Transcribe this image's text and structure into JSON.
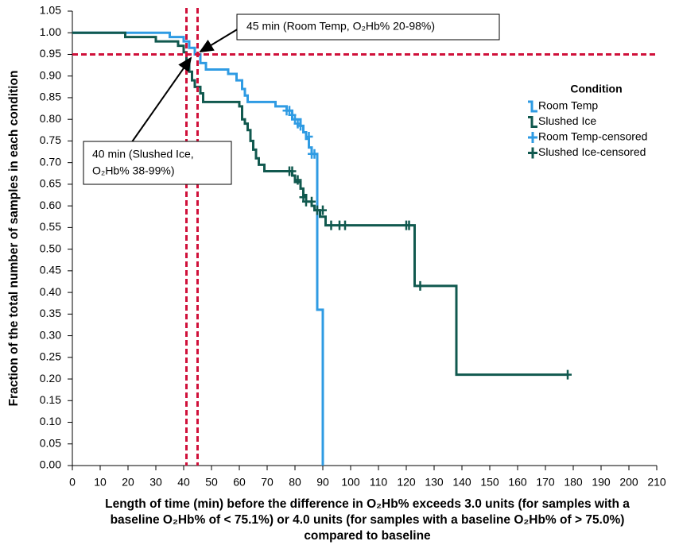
{
  "chart_data": {
    "type": "step",
    "ylabel": "Fraction of the total number of samples in each condition",
    "xlabel": [
      "Length of time (min) before the difference in O₂Hb% exceeds 3.0 units (for samples with a",
      "baseline O₂Hb% of < 75.1%) or 4.0 units (for samples with a baseline O₂Hb% of > 75.0%)",
      "compared to baseline"
    ],
    "xlim": [
      0,
      210
    ],
    "xticks": [
      0,
      10,
      20,
      30,
      40,
      50,
      60,
      70,
      80,
      90,
      100,
      110,
      120,
      130,
      140,
      150,
      160,
      170,
      180,
      190,
      200,
      210
    ],
    "ylim": [
      0,
      1.05
    ],
    "yticks": [
      {
        "value": 0,
        "label": "0.00"
      },
      {
        "value": 0.05,
        "label": "0.05"
      },
      {
        "value": 0.1,
        "label": "0.10"
      },
      {
        "value": 0.15,
        "label": "0.15"
      },
      {
        "value": 0.2,
        "label": "0.20"
      },
      {
        "value": 0.25,
        "label": "0.25"
      },
      {
        "value": 0.3,
        "label": "0.30"
      },
      {
        "value": 0.35,
        "label": "0.35"
      },
      {
        "value": 0.4,
        "label": "0.40"
      },
      {
        "value": 0.45,
        "label": "0.45"
      },
      {
        "value": 0.5,
        "label": "0.50"
      },
      {
        "value": 0.55,
        "label": "0.55"
      },
      {
        "value": 0.6,
        "label": "0.60"
      },
      {
        "value": 0.65,
        "label": "0.65"
      },
      {
        "value": 0.7,
        "label": "0.70"
      },
      {
        "value": 0.75,
        "label": "0.75"
      },
      {
        "value": 0.8,
        "label": "0.80"
      },
      {
        "value": 0.85,
        "label": "0.85"
      },
      {
        "value": 0.9,
        "label": "0.90"
      },
      {
        "value": 0.95,
        "label": "0.95"
      },
      {
        "value": 1,
        "label": "1.00"
      },
      {
        "value": 1.05,
        "label": "1.05"
      }
    ],
    "legend_title": "Condition",
    "legend_position": "right",
    "series": [
      {
        "name": "Room Temp",
        "color": "#2f9be3",
        "marker": "step",
        "x": [
          0,
          35,
          40,
          42,
          44,
          46,
          48,
          56,
          59,
          61,
          62,
          63,
          73,
          77,
          79,
          82,
          83,
          84,
          85,
          86,
          88,
          90
        ],
        "values": [
          1.0,
          0.99,
          0.98,
          0.965,
          0.95,
          0.93,
          0.915,
          0.905,
          0.89,
          0.87,
          0.855,
          0.84,
          0.83,
          0.82,
          0.8,
          0.785,
          0.77,
          0.755,
          0.735,
          0.72,
          0.36,
          0.0
        ]
      },
      {
        "name": "Slushed Ice",
        "color": "#11594f",
        "marker": "step",
        "x": [
          0,
          19,
          30,
          38,
          40,
          41,
          42,
          43,
          44,
          46,
          47,
          60,
          61,
          62,
          63,
          64,
          65,
          66,
          67,
          69,
          79,
          80,
          82,
          83,
          84,
          86,
          87,
          89,
          91,
          123,
          138,
          178
        ],
        "values": [
          1.0,
          0.99,
          0.98,
          0.97,
          0.955,
          0.935,
          0.91,
          0.89,
          0.875,
          0.86,
          0.84,
          0.83,
          0.8,
          0.79,
          0.775,
          0.75,
          0.73,
          0.71,
          0.695,
          0.68,
          0.67,
          0.655,
          0.64,
          0.625,
          0.61,
          0.6,
          0.59,
          0.575,
          0.555,
          0.415,
          0.21,
          0.21
        ]
      },
      {
        "name": "Room Temp-censored",
        "color": "#2f9be3",
        "marker": "plus",
        "x": [
          77,
          78,
          79,
          80,
          81,
          82,
          85,
          86,
          87
        ],
        "values": [
          0.82,
          0.82,
          0.81,
          0.8,
          0.79,
          0.785,
          0.76,
          0.72,
          0.72
        ]
      },
      {
        "name": "Slushed Ice-censored",
        "color": "#11594f",
        "marker": "plus",
        "x": [
          78,
          79,
          81,
          83,
          84,
          86,
          88,
          90,
          93,
          96,
          98,
          120,
          121,
          125,
          178
        ],
        "values": [
          0.68,
          0.68,
          0.66,
          0.62,
          0.61,
          0.61,
          0.59,
          0.59,
          0.555,
          0.555,
          0.555,
          0.555,
          0.555,
          0.415,
          0.21
        ]
      }
    ],
    "reference_lines": {
      "color": "#d0103a",
      "y": [
        0.95
      ],
      "x": [
        41,
        45
      ]
    },
    "annotations": [
      {
        "lines": [
          "45 min (Room Temp, O₂Hb% 20-98%)"
        ]
      },
      {
        "lines": [
          "40 min (Slushed Ice,",
          "O₂Hb% 38-99%)"
        ]
      }
    ]
  }
}
